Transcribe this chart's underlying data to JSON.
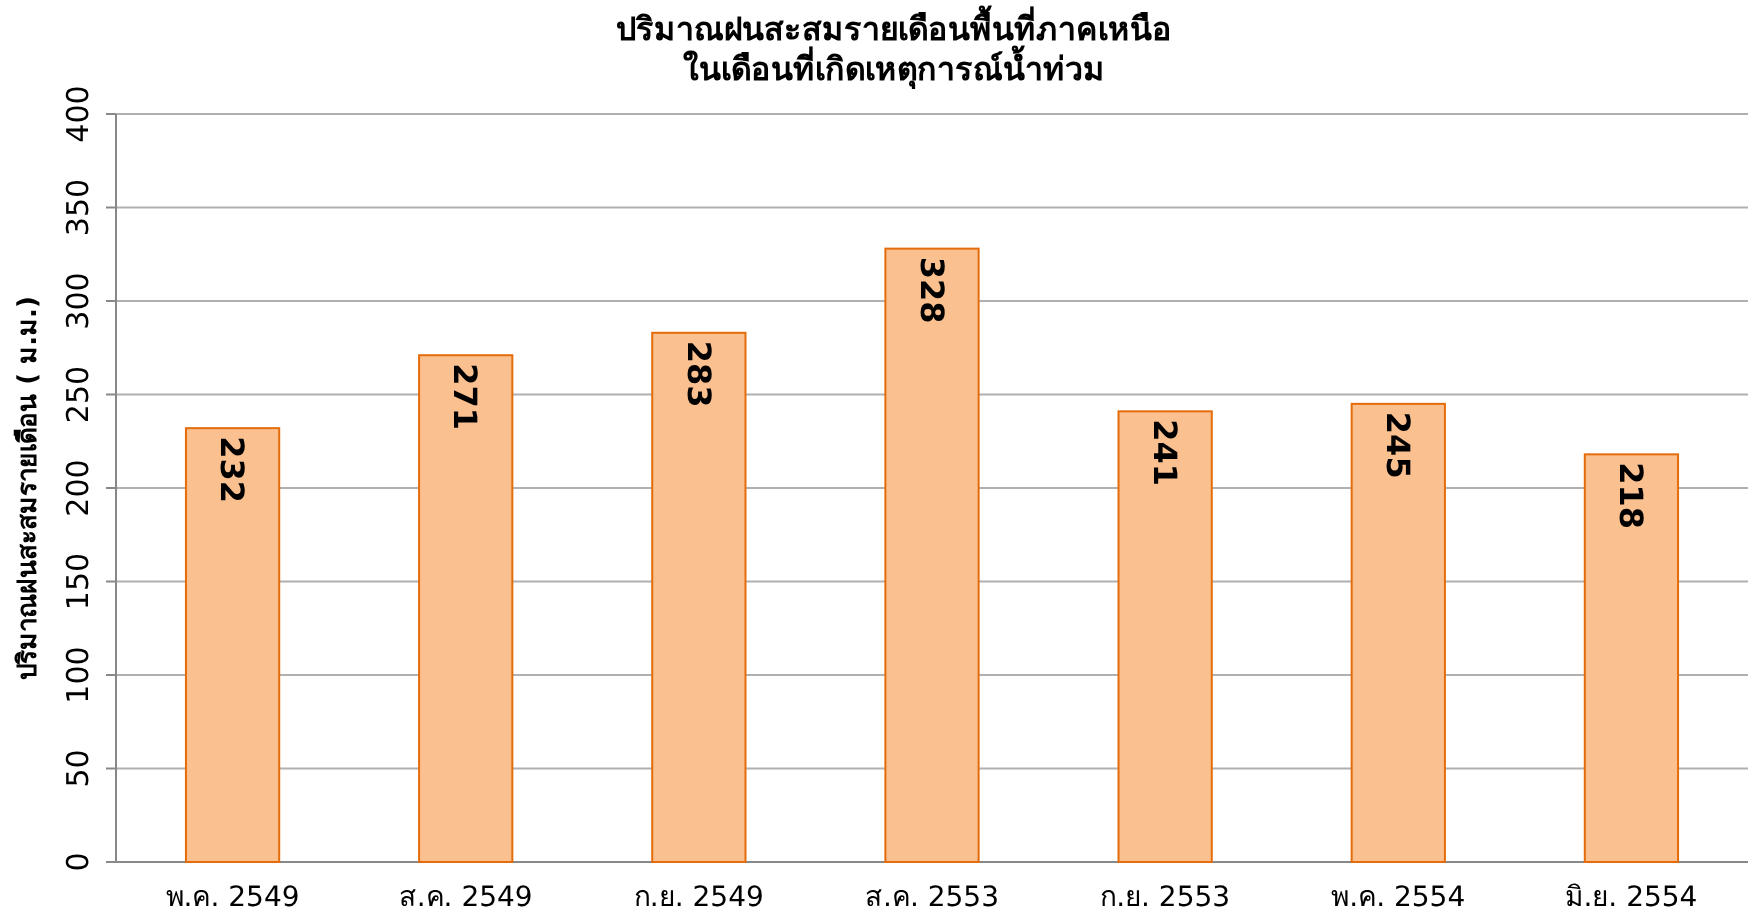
{
  "chart_data": {
    "type": "bar",
    "title": "ปริมาณฝนสะสมรายเดือนพื้นที่ภาคเหนือ\nในเดือนที่เกิดเหตุการณ์น้ำท่วม",
    "ylabel": "ปริมาณฝนสะสมรายเดือน ( ม.ม.)",
    "categories": [
      "พ.ค. 2549",
      "ส.ค. 2549",
      "ก.ย. 2549",
      "ส.ค. 2553",
      "ก.ย. 2553",
      "พ.ค. 2554",
      "มิ.ย. 2554"
    ],
    "values": [
      232,
      271,
      283,
      328,
      241,
      245,
      218
    ],
    "color": "#fac090",
    "ylim": [
      0,
      400
    ],
    "yticks": [
      0,
      50,
      100,
      150,
      200,
      250,
      300,
      350,
      400
    ],
    "grid": "y",
    "data_labels": true
  }
}
